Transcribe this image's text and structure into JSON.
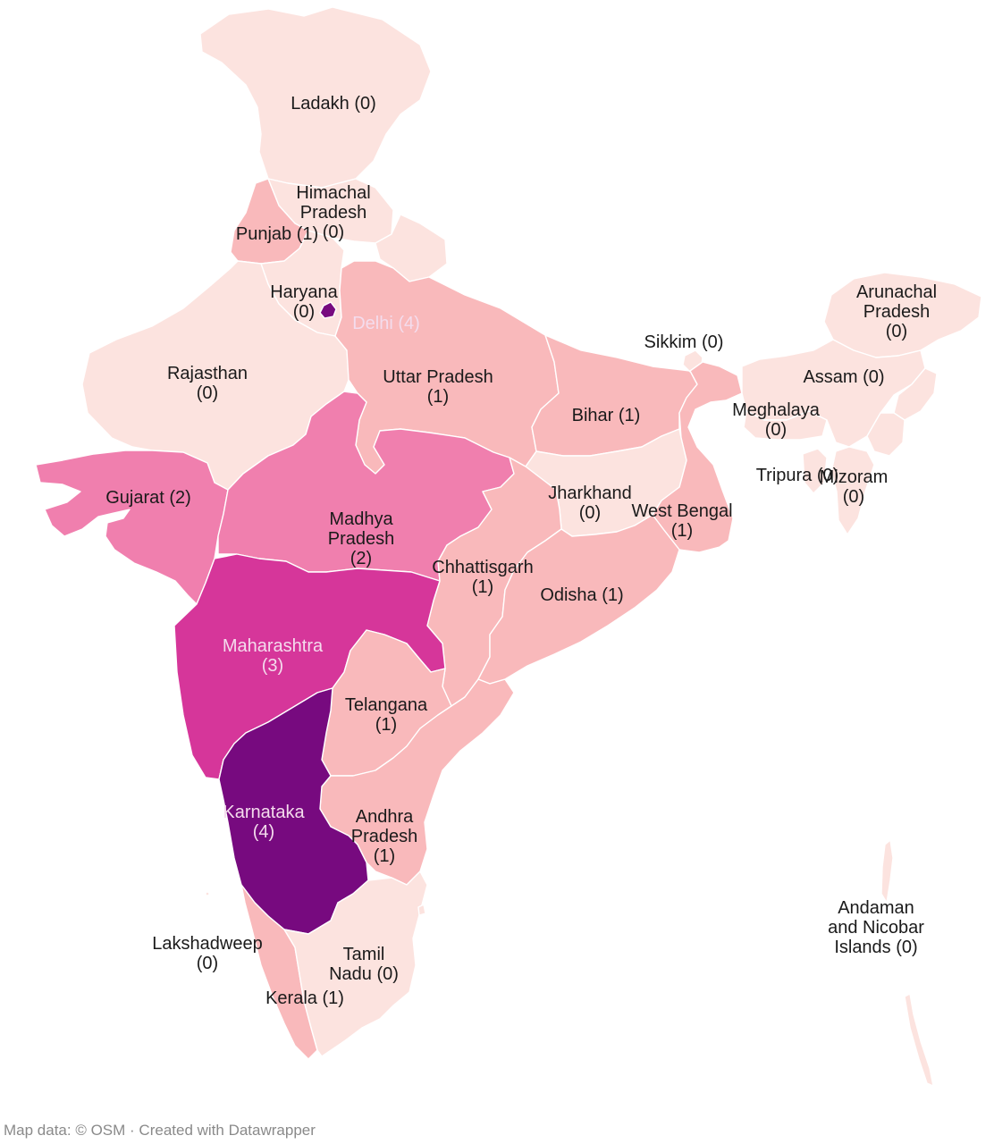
{
  "colors": {
    "c0": "#fce3df",
    "c1": "#f9b9bb",
    "c2": "#f07fae",
    "c3": "#d6369a",
    "c4": "#770a7f",
    "label_dark": "#1a1a1a",
    "label_light": "#f4dced"
  },
  "regions": [
    {
      "id": "ladakh",
      "name": "Ladakh",
      "value": 0,
      "lines": [
        "Ladakh (0)"
      ]
    },
    {
      "id": "himachal-pradesh",
      "name": "Himachal Pradesh",
      "value": 0,
      "lines": [
        "Himachal",
        "Pradesh",
        "(0)"
      ]
    },
    {
      "id": "punjab",
      "name": "Punjab",
      "value": 1,
      "lines": [
        "Punjab (1)"
      ]
    },
    {
      "id": "haryana",
      "name": "Haryana",
      "value": 0,
      "lines": [
        "Haryana",
        "(0)"
      ]
    },
    {
      "id": "delhi",
      "name": "Delhi",
      "value": 4,
      "lines": [
        "Delhi (4)"
      ]
    },
    {
      "id": "rajasthan",
      "name": "Rajasthan",
      "value": 0,
      "lines": [
        "Rajasthan",
        "(0)"
      ]
    },
    {
      "id": "uttar-pradesh",
      "name": "Uttar Pradesh",
      "value": 1,
      "lines": [
        "Uttar Pradesh",
        "(1)"
      ]
    },
    {
      "id": "bihar",
      "name": "Bihar",
      "value": 1,
      "lines": [
        "Bihar (1)"
      ]
    },
    {
      "id": "sikkim",
      "name": "Sikkim",
      "value": 0,
      "lines": [
        "Sikkim (0)"
      ]
    },
    {
      "id": "arunachal-pradesh",
      "name": "Arunachal Pradesh",
      "value": 0,
      "lines": [
        "Arunachal",
        "Pradesh",
        "(0)"
      ]
    },
    {
      "id": "assam",
      "name": "Assam",
      "value": 0,
      "lines": [
        "Assam (0)"
      ]
    },
    {
      "id": "meghalaya",
      "name": "Meghalaya",
      "value": 0,
      "lines": [
        "Meghalaya",
        "(0)"
      ]
    },
    {
      "id": "tripura",
      "name": "Tripura",
      "value": 0,
      "lines": [
        "Tripura (0)"
      ]
    },
    {
      "id": "mizoram",
      "name": "Mizoram",
      "value": 0,
      "lines": [
        "Mizoram",
        "(0)"
      ]
    },
    {
      "id": "gujarat",
      "name": "Gujarat",
      "value": 2,
      "lines": [
        "Gujarat (2)"
      ]
    },
    {
      "id": "madhya-pradesh",
      "name": "Madhya Pradesh",
      "value": 2,
      "lines": [
        "Madhya",
        "Pradesh",
        "(2)"
      ]
    },
    {
      "id": "jharkhand",
      "name": "Jharkhand",
      "value": 0,
      "lines": [
        "Jharkhand",
        "(0)"
      ]
    },
    {
      "id": "west-bengal",
      "name": "West Bengal",
      "value": 1,
      "lines": [
        "West Bengal",
        "(1)"
      ]
    },
    {
      "id": "chhattisgarh",
      "name": "Chhattisgarh",
      "value": 1,
      "lines": [
        "Chhattisgarh",
        "(1)"
      ]
    },
    {
      "id": "odisha",
      "name": "Odisha",
      "value": 1,
      "lines": [
        "Odisha (1)"
      ]
    },
    {
      "id": "maharashtra",
      "name": "Maharashtra",
      "value": 3,
      "lines": [
        "Maharashtra",
        "(3)"
      ]
    },
    {
      "id": "telangana",
      "name": "Telangana",
      "value": 1,
      "lines": [
        "Telangana",
        "(1)"
      ]
    },
    {
      "id": "karnataka",
      "name": "Karnataka",
      "value": 4,
      "lines": [
        "Karnataka",
        "(4)"
      ]
    },
    {
      "id": "andhra-pradesh",
      "name": "Andhra Pradesh",
      "value": 1,
      "lines": [
        "Andhra",
        "Pradesh",
        "(1)"
      ]
    },
    {
      "id": "tamil-nadu",
      "name": "Tamil Nadu",
      "value": 0,
      "lines": [
        "Tamil",
        "Nadu (0)"
      ]
    },
    {
      "id": "kerala",
      "name": "Kerala",
      "value": 1,
      "lines": [
        "Kerala (1)"
      ]
    },
    {
      "id": "lakshadweep",
      "name": "Lakshadweep",
      "value": 0,
      "lines": [
        "Lakshadweep",
        "(0)"
      ]
    },
    {
      "id": "andaman-and-nicobar",
      "name": "Andaman and Nicobar Islands",
      "value": 0,
      "lines": [
        "Andaman",
        "and Nicobar",
        "Islands (0)"
      ]
    }
  ],
  "footer": {
    "source": "Map data: © OSM",
    "separator": " · ",
    "credit": "Created with Datawrapper"
  }
}
